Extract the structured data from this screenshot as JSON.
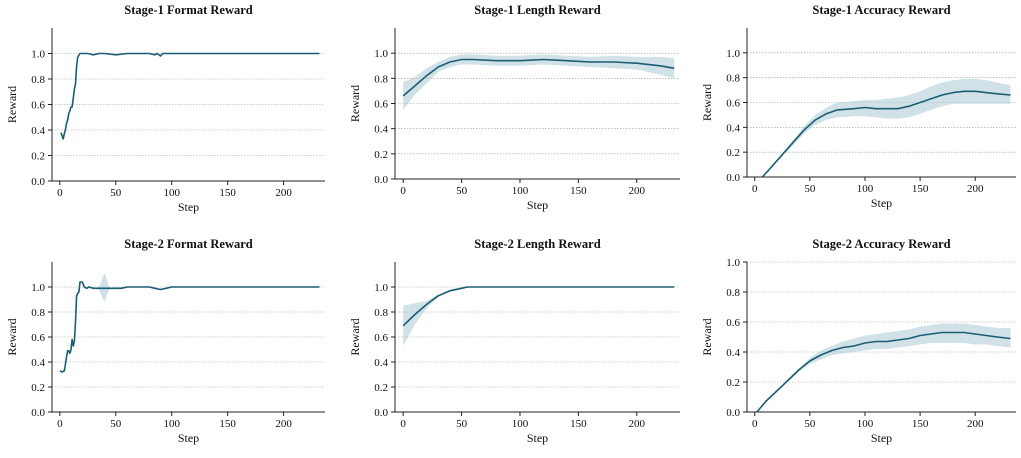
{
  "colors": {
    "line": "#1b5e74",
    "band": "#a9cbd4",
    "grid": "#999999",
    "axis": "#222222"
  },
  "chart_data": [
    {
      "type": "line",
      "title": "Stage-1 Format Reward",
      "xlabel": "Step",
      "ylabel": "Reward",
      "xlim": [
        -7,
        237
      ],
      "ylim": [
        0,
        1.2
      ],
      "xticks": [
        0,
        50,
        100,
        150,
        200
      ],
      "yticks": [
        0.0,
        0.2,
        0.4,
        0.6,
        0.8,
        1.0
      ],
      "grid": "horizontal-dashed",
      "series": [
        {
          "x": [
            1,
            3,
            4,
            5,
            6,
            7,
            8,
            9,
            10,
            11,
            12,
            13,
            14,
            15,
            16,
            18,
            20,
            25,
            30,
            35,
            40,
            50,
            60,
            70,
            80,
            85,
            87,
            90,
            92,
            95,
            100,
            120,
            150,
            200,
            232
          ],
          "y": [
            0.38,
            0.33,
            0.37,
            0.4,
            0.45,
            0.48,
            0.53,
            0.55,
            0.58,
            0.58,
            0.65,
            0.72,
            0.76,
            0.9,
            0.97,
            1.0,
            1.0,
            1.0,
            0.99,
            1.0,
            1.0,
            0.99,
            1.0,
            1.0,
            1.0,
            0.99,
            1.0,
            0.98,
            1.0,
            1.0,
            1.0,
            1.0,
            1.0,
            1.0,
            1.0
          ]
        }
      ]
    },
    {
      "type": "line",
      "title": "Stage-1 Length Reward",
      "xlabel": "Step",
      "ylabel": "Reward",
      "xlim": [
        -7,
        237
      ],
      "ylim": [
        0,
        1.2
      ],
      "xticks": [
        0,
        50,
        100,
        150,
        200
      ],
      "yticks": [
        0.0,
        0.2,
        0.4,
        0.6,
        0.8,
        1.0
      ],
      "grid": "horizontal-dashed",
      "series": [
        {
          "x": [
            0,
            10,
            20,
            30,
            40,
            50,
            60,
            80,
            100,
            120,
            140,
            160,
            180,
            200,
            220,
            232
          ],
          "y": [
            0.66,
            0.74,
            0.82,
            0.89,
            0.93,
            0.95,
            0.95,
            0.94,
            0.94,
            0.95,
            0.94,
            0.93,
            0.93,
            0.92,
            0.9,
            0.88
          ],
          "lower": [
            0.55,
            0.67,
            0.76,
            0.85,
            0.89,
            0.91,
            0.91,
            0.9,
            0.9,
            0.91,
            0.9,
            0.89,
            0.88,
            0.87,
            0.83,
            0.8
          ],
          "upper": [
            0.77,
            0.81,
            0.88,
            0.93,
            0.97,
            0.99,
            0.99,
            0.98,
            0.98,
            0.99,
            0.98,
            0.97,
            0.98,
            0.97,
            0.97,
            0.96
          ]
        }
      ]
    },
    {
      "type": "line",
      "title": "Stage-1 Accuracy Reward",
      "xlabel": "Step",
      "ylabel": "Reward",
      "xlim": [
        -7,
        237
      ],
      "ylim": [
        0,
        1.2
      ],
      "xticks": [
        0,
        50,
        100,
        150,
        200
      ],
      "yticks": [
        0.0,
        0.2,
        0.4,
        0.6,
        0.8,
        1.0
      ],
      "grid": "horizontal-dashed",
      "series": [
        {
          "x": [
            7,
            15,
            25,
            35,
            45,
            55,
            65,
            75,
            90,
            100,
            110,
            120,
            130,
            140,
            150,
            160,
            170,
            180,
            190,
            200,
            210,
            220,
            232
          ],
          "y": [
            0.0,
            0.08,
            0.18,
            0.28,
            0.38,
            0.46,
            0.51,
            0.54,
            0.55,
            0.56,
            0.55,
            0.55,
            0.55,
            0.57,
            0.6,
            0.63,
            0.66,
            0.68,
            0.69,
            0.69,
            0.68,
            0.67,
            0.66
          ],
          "lower": [
            0.0,
            0.07,
            0.17,
            0.26,
            0.35,
            0.42,
            0.46,
            0.48,
            0.49,
            0.49,
            0.48,
            0.47,
            0.47,
            0.48,
            0.51,
            0.54,
            0.57,
            0.59,
            0.59,
            0.59,
            0.59,
            0.59,
            0.59
          ],
          "upper": [
            0.0,
            0.09,
            0.19,
            0.3,
            0.41,
            0.5,
            0.56,
            0.6,
            0.61,
            0.62,
            0.62,
            0.63,
            0.64,
            0.66,
            0.69,
            0.73,
            0.76,
            0.78,
            0.79,
            0.79,
            0.78,
            0.76,
            0.74
          ]
        }
      ]
    },
    {
      "type": "line",
      "title": "Stage-2 Format Reward",
      "xlabel": "Step",
      "ylabel": "Reward",
      "xlim": [
        -7,
        237
      ],
      "ylim": [
        0,
        1.2
      ],
      "xticks": [
        0,
        50,
        100,
        150,
        200
      ],
      "yticks": [
        0.0,
        0.2,
        0.4,
        0.6,
        0.8,
        1.0
      ],
      "grid": "horizontal-dashed",
      "series": [
        {
          "x": [
            0,
            2,
            4,
            5,
            6,
            7,
            8,
            9,
            10,
            11,
            12,
            13,
            14,
            15,
            16,
            17,
            18,
            20,
            22,
            24,
            26,
            30,
            35,
            40,
            45,
            50,
            55,
            60,
            70,
            80,
            85,
            90,
            95,
            100,
            120,
            150,
            200,
            232
          ],
          "y": [
            0.33,
            0.32,
            0.33,
            0.38,
            0.44,
            0.49,
            0.49,
            0.47,
            0.5,
            0.58,
            0.53,
            0.57,
            0.72,
            0.93,
            0.95,
            0.96,
            1.04,
            1.04,
            1.0,
            0.99,
            1.0,
            0.99,
            0.99,
            0.99,
            0.99,
            0.99,
            0.99,
            1.0,
            1.0,
            1.0,
            0.99,
            0.98,
            0.99,
            1.0,
            1.0,
            1.0,
            1.0,
            1.0
          ],
          "band_x": [
            34,
            36,
            38,
            40,
            42,
            44
          ],
          "band_lower": [
            0.99,
            0.96,
            0.91,
            0.88,
            0.93,
            0.98
          ],
          "band_upper": [
            0.99,
            1.02,
            1.07,
            1.11,
            1.06,
            1.0
          ]
        }
      ]
    },
    {
      "type": "line",
      "title": "Stage-2 Length Reward",
      "xlabel": "Step",
      "ylabel": "Reward",
      "xlim": [
        -7,
        237
      ],
      "ylim": [
        0,
        1.2
      ],
      "xticks": [
        0,
        50,
        100,
        150,
        200
      ],
      "yticks": [
        0.0,
        0.2,
        0.4,
        0.6,
        0.8,
        1.0
      ],
      "grid": "horizontal-dashed",
      "series": [
        {
          "x": [
            0,
            10,
            20,
            30,
            40,
            50,
            55,
            60,
            80,
            100,
            150,
            200,
            232
          ],
          "y": [
            0.69,
            0.78,
            0.86,
            0.93,
            0.97,
            0.99,
            1.0,
            1.0,
            1.0,
            1.0,
            1.0,
            1.0,
            1.0
          ],
          "lower": [
            0.53,
            0.7,
            0.83,
            0.92,
            0.96,
            0.99,
            1.0,
            1.0,
            1.0,
            1.0,
            1.0,
            1.0,
            1.0
          ],
          "upper": [
            0.85,
            0.87,
            0.89,
            0.94,
            0.98,
            1.0,
            1.0,
            1.0,
            1.0,
            1.0,
            1.0,
            1.0,
            1.0
          ]
        }
      ]
    },
    {
      "type": "line",
      "title": "Stage-2 Accuracy Reward",
      "xlabel": "Step",
      "ylabel": "Reward",
      "xlim": [
        -7,
        237
      ],
      "ylim": [
        0,
        1.0
      ],
      "xticks": [
        0,
        50,
        100,
        150,
        200
      ],
      "yticks": [
        0.0,
        0.2,
        0.4,
        0.6,
        0.8,
        1.0
      ],
      "grid": "horizontal-dashed",
      "series": [
        {
          "x": [
            2,
            10,
            20,
            30,
            40,
            50,
            60,
            70,
            80,
            90,
            100,
            110,
            120,
            130,
            140,
            150,
            160,
            170,
            180,
            190,
            200,
            210,
            220,
            232
          ],
          "y": [
            0.0,
            0.07,
            0.14,
            0.21,
            0.28,
            0.34,
            0.38,
            0.41,
            0.43,
            0.44,
            0.46,
            0.47,
            0.47,
            0.48,
            0.49,
            0.51,
            0.52,
            0.53,
            0.53,
            0.53,
            0.52,
            0.51,
            0.5,
            0.49
          ],
          "lower": [
            0.0,
            0.07,
            0.14,
            0.2,
            0.27,
            0.32,
            0.35,
            0.38,
            0.39,
            0.4,
            0.41,
            0.42,
            0.42,
            0.43,
            0.44,
            0.45,
            0.46,
            0.46,
            0.46,
            0.46,
            0.45,
            0.45,
            0.44,
            0.43
          ],
          "upper": [
            0.0,
            0.07,
            0.14,
            0.22,
            0.29,
            0.36,
            0.41,
            0.44,
            0.47,
            0.49,
            0.51,
            0.52,
            0.53,
            0.54,
            0.55,
            0.57,
            0.58,
            0.59,
            0.59,
            0.59,
            0.58,
            0.57,
            0.56,
            0.56
          ]
        }
      ]
    }
  ]
}
